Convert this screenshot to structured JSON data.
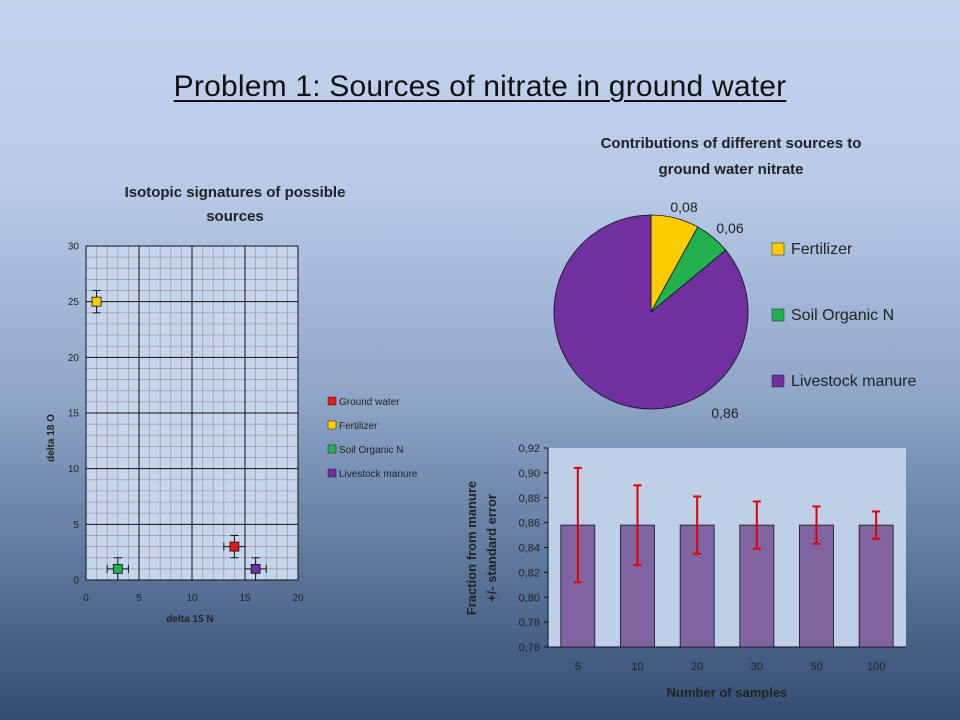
{
  "slide": {
    "title": "Problem 1: Sources of nitrate in ground water"
  },
  "colors": {
    "ground_water": "#e21b1b",
    "fertilizer": "#ffcc00",
    "soil_organic_n": "#22b050",
    "livestock_manure": "#7030a0",
    "bar_fill": "#8064a2",
    "error_bar": "#e00000"
  },
  "chart_data": [
    {
      "type": "scatter",
      "title": "Isotopic signatures of possible sources",
      "title_lines": [
        "Isotopic signatures of possible",
        "sources"
      ],
      "xlabel": "delta 15 N",
      "ylabel": "delta 18 O",
      "xlim": [
        0,
        20
      ],
      "ylim": [
        0,
        30
      ],
      "xticks": [
        "0",
        "5",
        "10",
        "15",
        "20"
      ],
      "yticks": [
        "0",
        "5",
        "10",
        "15",
        "20",
        "25",
        "30"
      ],
      "grid": true,
      "legend_position": "right",
      "series": [
        {
          "name": "Ground water",
          "color": "#e21b1b",
          "points": [
            {
              "x": 14,
              "y": 3,
              "xerr": 1,
              "yerr": 1
            }
          ]
        },
        {
          "name": "Fertilizer",
          "color": "#ffcc00",
          "points": [
            {
              "x": 1,
              "y": 25,
              "xerr": 0,
              "yerr": 1
            }
          ]
        },
        {
          "name": "Soil Organic N",
          "color": "#22b050",
          "points": [
            {
              "x": 3,
              "y": 1,
              "xerr": 1,
              "yerr": 1
            }
          ]
        },
        {
          "name": "Livestock manure",
          "color": "#7030a0",
          "points": [
            {
              "x": 16,
              "y": 1,
              "xerr": 1,
              "yerr": 1
            }
          ]
        }
      ]
    },
    {
      "type": "pie",
      "title": "Contributions of different sources to ground water nitrate",
      "title_lines": [
        "Contributions  of different sources to",
        "ground water nitrate"
      ],
      "legend_position": "right",
      "slices": [
        {
          "name": "Fertilizer",
          "value": 0.08,
          "label": "0,08",
          "color": "#ffcc00"
        },
        {
          "name": "Soil Organic N",
          "value": 0.06,
          "label": "0,06",
          "color": "#22b050"
        },
        {
          "name": "Livestock manure",
          "value": 0.86,
          "label": "0,86",
          "color": "#7030a0"
        }
      ]
    },
    {
      "type": "bar",
      "title": "",
      "xlabel": "Number of samples",
      "ylabel_lines": [
        "Fraction from manure",
        "+/- standard error"
      ],
      "categories": [
        "5",
        "10",
        "20",
        "30",
        "50",
        "100"
      ],
      "values": [
        0.858,
        0.858,
        0.858,
        0.858,
        0.858,
        0.858
      ],
      "errors": [
        0.046,
        0.032,
        0.023,
        0.019,
        0.015,
        0.011
      ],
      "ylim": [
        0.76,
        0.92
      ],
      "yticks": [
        "0,76",
        "0,78",
        "0,80",
        "0,82",
        "0,84",
        "0,86",
        "0,88",
        "0,90",
        "0,92"
      ],
      "color": "#8064a2",
      "error_color": "#e00000",
      "grid": false
    }
  ]
}
